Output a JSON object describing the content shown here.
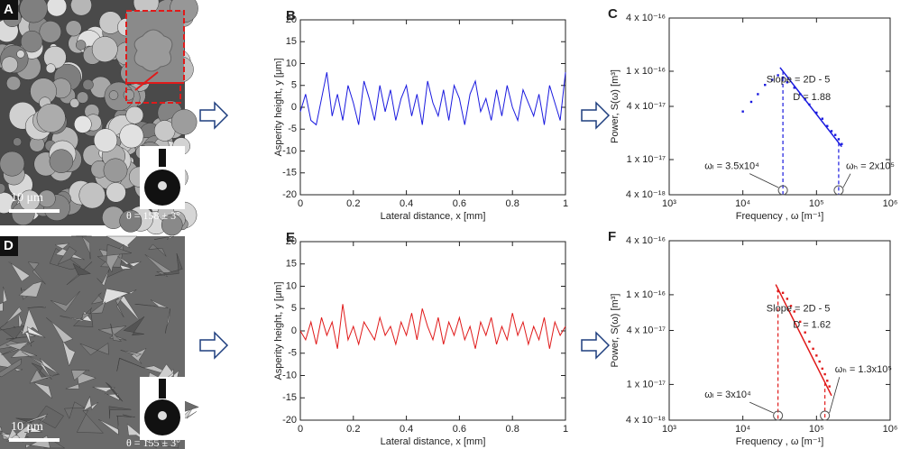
{
  "images": [
    {
      "label": "A",
      "scale_bar": "10 μm",
      "contact_angle": "θ = 158 ± 3°"
    },
    {
      "label": "D",
      "scale_bar": "10 μm",
      "contact_angle": "θ = 155 ± 3°"
    }
  ],
  "chart_data": [
    {
      "type": "line",
      "label": "B",
      "color": "#1a1adf",
      "x_label": "Lateral distance, x [mm]",
      "y_label": "Asperity height, y [μm]",
      "xlim": [
        0,
        1
      ],
      "xticks": [
        0,
        0.2,
        0.4,
        0.6,
        0.8,
        1
      ],
      "ylim": [
        -20,
        20
      ],
      "yticks": [
        -20,
        -15,
        -10,
        -5,
        0,
        5,
        10,
        15,
        20
      ],
      "x": [
        0,
        0.02,
        0.04,
        0.06,
        0.08,
        0.1,
        0.12,
        0.14,
        0.16,
        0.18,
        0.2,
        0.22,
        0.24,
        0.26,
        0.28,
        0.3,
        0.32,
        0.34,
        0.36,
        0.38,
        0.4,
        0.42,
        0.44,
        0.46,
        0.48,
        0.5,
        0.52,
        0.54,
        0.56,
        0.58,
        0.6,
        0.62,
        0.64,
        0.66,
        0.68,
        0.7,
        0.72,
        0.74,
        0.76,
        0.78,
        0.8,
        0.82,
        0.84,
        0.86,
        0.88,
        0.9,
        0.92,
        0.94,
        0.96,
        0.98,
        1
      ],
      "values": [
        -1,
        3,
        -3,
        -4,
        2,
        8,
        -2,
        3,
        -3,
        5,
        1,
        -4,
        6,
        2,
        -3,
        5,
        -1,
        4,
        -3,
        2,
        5,
        -2,
        3,
        -4,
        6,
        1,
        -2,
        4,
        -3,
        5,
        2,
        -4,
        3,
        6,
        -1,
        2,
        -3,
        4,
        -2,
        5,
        0,
        -3,
        4,
        1,
        -2,
        3,
        -4,
        5,
        1,
        -3,
        8
      ]
    },
    {
      "type": "scatter",
      "label": "C",
      "color": "#1a1adf",
      "xscale": "log",
      "yscale": "log",
      "x_label": "Frequency , ω [m⁻¹]",
      "y_label": "Power, S(ω) [m³]",
      "xlim": [
        1000,
        1000000
      ],
      "xticks": [
        {
          "value": 1000,
          "label": "10³"
        },
        {
          "value": 10000,
          "label": "10⁴"
        },
        {
          "value": 100000,
          "label": "10⁵"
        },
        {
          "value": 1000000,
          "label": "10⁶"
        }
      ],
      "ylim": [
        4e-18,
        4e-16
      ],
      "yticks": [
        {
          "value": 4e-18,
          "label": "4 x 10⁻¹⁸"
        },
        {
          "value": 1e-17,
          "label": "1 x 10⁻¹⁷"
        },
        {
          "value": 4e-17,
          "label": "4 x 10⁻¹⁷"
        },
        {
          "value": 1e-16,
          "label": "1 x 10⁻¹⁶"
        },
        {
          "value": 4e-16,
          "label": "4 x 10⁻¹⁶"
        }
      ],
      "x": [
        10000,
        13000,
        16000,
        20000,
        25000,
        30000,
        35000,
        40000,
        50000,
        60000,
        70000,
        80000,
        100000,
        120000,
        140000,
        160000,
        180000,
        200000,
        220000
      ],
      "values": [
        3.5e-17,
        4.5e-17,
        5.5e-17,
        7e-17,
        8e-17,
        9e-17,
        8.5e-17,
        7.5e-17,
        6.5e-17,
        5.5e-17,
        4.8e-17,
        4.2e-17,
        3.4e-17,
        2.9e-17,
        2.4e-17,
        2.1e-17,
        1.9e-17,
        1.7e-17,
        1.5e-17
      ],
      "fit": {
        "x": [
          32000,
          220000
        ],
        "values": [
          1.1e-16,
          1.4e-17
        ]
      },
      "vlines": [
        35000,
        200000
      ],
      "annotations": [
        "Slope = 2D - 5",
        "D = 1.88",
        "ωₗ = 3.5x10⁴",
        "ωₕ = 2x10⁵"
      ]
    },
    {
      "type": "line",
      "label": "E",
      "color": "#e01a1a",
      "x_label": "Lateral distance, x [mm]",
      "y_label": "Asperity height, y [μm]",
      "xlim": [
        0,
        1
      ],
      "xticks": [
        0,
        0.2,
        0.4,
        0.6,
        0.8,
        1
      ],
      "ylim": [
        -20,
        20
      ],
      "yticks": [
        -20,
        -15,
        -10,
        -5,
        0,
        5,
        10,
        15,
        20
      ],
      "x": [
        0,
        0.02,
        0.04,
        0.06,
        0.08,
        0.1,
        0.12,
        0.14,
        0.16,
        0.18,
        0.2,
        0.22,
        0.24,
        0.26,
        0.28,
        0.3,
        0.32,
        0.34,
        0.36,
        0.38,
        0.4,
        0.42,
        0.44,
        0.46,
        0.48,
        0.5,
        0.52,
        0.54,
        0.56,
        0.58,
        0.6,
        0.62,
        0.64,
        0.66,
        0.68,
        0.7,
        0.72,
        0.74,
        0.76,
        0.78,
        0.8,
        0.82,
        0.84,
        0.86,
        0.88,
        0.9,
        0.92,
        0.94,
        0.96,
        0.98,
        1
      ],
      "values": [
        0,
        -2,
        2,
        -3,
        3,
        -1,
        2,
        -4,
        6,
        -2,
        1,
        -3,
        2,
        0,
        -2,
        3,
        -1,
        1,
        -3,
        2,
        -1,
        4,
        -2,
        5,
        1,
        -2,
        3,
        -3,
        2,
        -1,
        3,
        -2,
        1,
        -4,
        2,
        -1,
        3,
        -3,
        1,
        -2,
        4,
        -1,
        2,
        -3,
        1,
        -2,
        3,
        -4,
        2,
        -1,
        1
      ]
    },
    {
      "type": "scatter",
      "label": "F",
      "color": "#e01a1a",
      "xscale": "log",
      "yscale": "log",
      "x_label": "Frequency , ω [m⁻¹]",
      "y_label": "Power, S(ω) [m³]",
      "xlim": [
        1000,
        1000000
      ],
      "xticks": [
        {
          "value": 1000,
          "label": "10³"
        },
        {
          "value": 10000,
          "label": "10⁴"
        },
        {
          "value": 100000,
          "label": "10⁵"
        },
        {
          "value": 1000000,
          "label": "10⁶"
        }
      ],
      "ylim": [
        4e-18,
        4e-16
      ],
      "yticks": [
        {
          "value": 4e-18,
          "label": "4 x 10⁻¹⁸"
        },
        {
          "value": 1e-17,
          "label": "1 x 10⁻¹⁷"
        },
        {
          "value": 4e-17,
          "label": "4 x 10⁻¹⁷"
        },
        {
          "value": 1e-16,
          "label": "1 x 10⁻¹⁶"
        },
        {
          "value": 4e-16,
          "label": "4 x 10⁻¹⁶"
        }
      ],
      "x": [
        30000,
        35000,
        40000,
        45000,
        50000,
        60000,
        70000,
        80000,
        90000,
        100000,
        110000,
        120000,
        130000,
        140000,
        150000
      ],
      "values": [
        1.1e-16,
        1.05e-16,
        9e-17,
        7.5e-17,
        6.5e-17,
        5e-17,
        3.8e-17,
        3e-17,
        2.5e-17,
        2.1e-17,
        1.8e-17,
        1.5e-17,
        1.3e-17,
        1.1e-17,
        9.5e-18
      ],
      "fit": {
        "x": [
          28000,
          160000
        ],
        "values": [
          1.3e-16,
          7.5e-18
        ]
      },
      "vlines": [
        30000,
        130000
      ],
      "annotations": [
        "Slope = 2D - 5",
        "D = 1.62",
        "ωₗ = 3x10⁴",
        "ωₕ = 1.3x10⁵"
      ]
    }
  ]
}
